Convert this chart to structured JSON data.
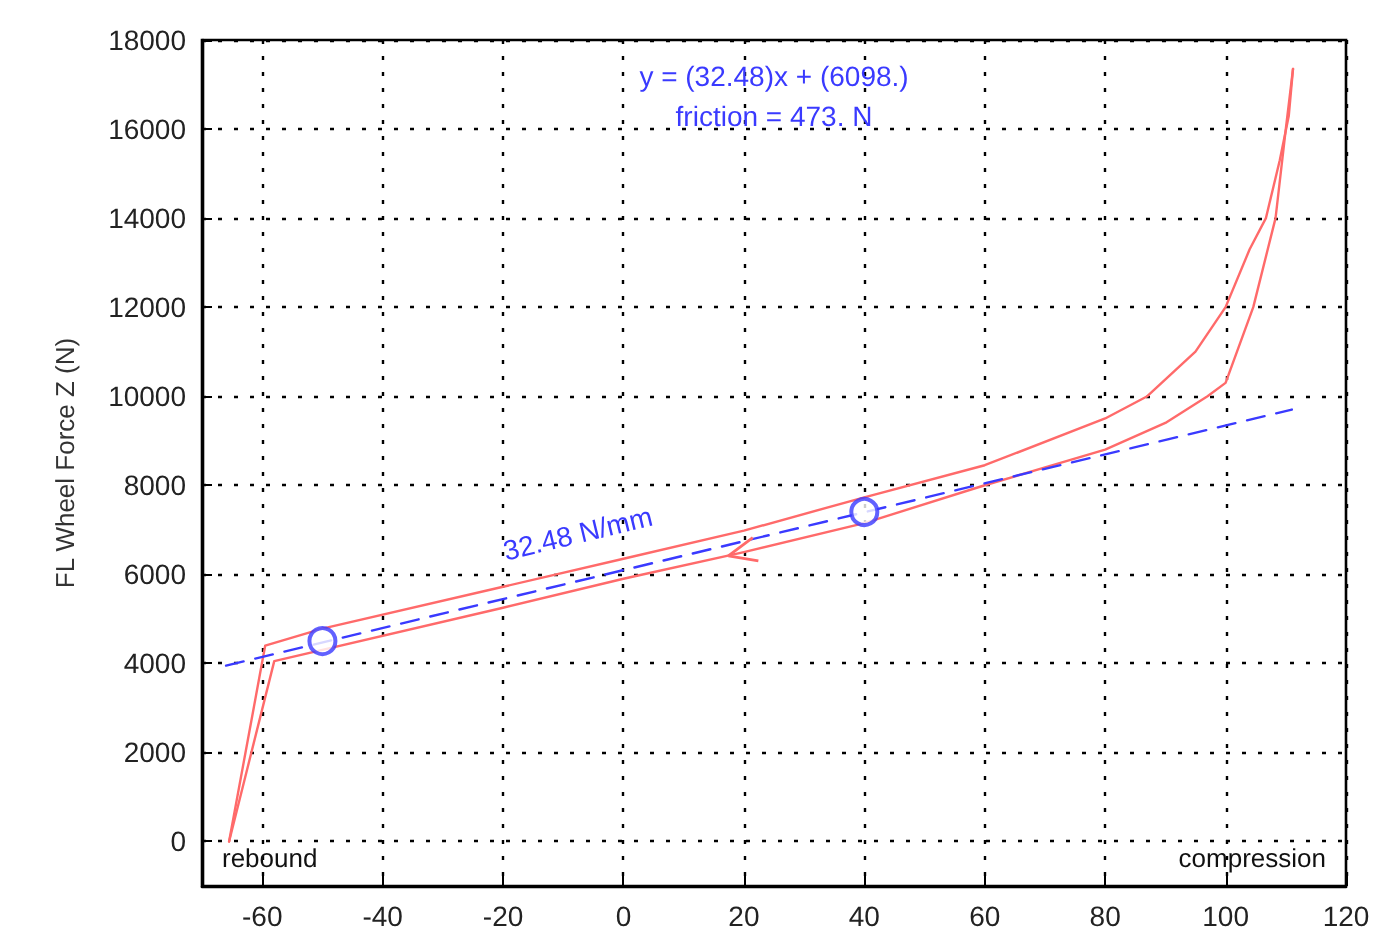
{
  "chart_data": {
    "type": "line",
    "ylabel": "FL Wheel Force Z (N)",
    "xlim": [
      -70,
      120
    ],
    "xticks": [
      -60,
      -40,
      -20,
      0,
      20,
      40,
      60,
      80,
      100,
      120
    ],
    "ylim": [
      -1000,
      18000
    ],
    "yticks": [
      0,
      2000,
      4000,
      6000,
      8000,
      10000,
      12000,
      14000,
      16000,
      18000
    ],
    "grid": true,
    "legend": false,
    "series": [
      {
        "color": "#ff6a6a",
        "marker": "none",
        "line_style": "solid",
        "x": [
          -65.5,
          -59.5,
          -50,
          -20,
          0,
          20,
          40,
          60,
          80,
          87,
          95,
          100,
          104,
          106.7,
          109,
          110.5,
          111.2
        ],
        "values": [
          0,
          4400,
          4780,
          5720,
          6350,
          6980,
          7730,
          8450,
          9500,
          10000,
          11000,
          12000,
          13300,
          14000,
          15300,
          16300,
          17350
        ]
      },
      {
        "color": "#ff6a6a",
        "marker": "none",
        "line_style": "solid",
        "x": [
          -65.5,
          -58,
          -20,
          0,
          20,
          40,
          60,
          80,
          90,
          97,
          100,
          104.6,
          108.3,
          110,
          111.2
        ],
        "values": [
          0,
          4050,
          5250,
          5900,
          6500,
          7150,
          8000,
          8800,
          9400,
          10000,
          10300,
          12000,
          14000,
          16000,
          17350
        ]
      },
      {
        "color": "#3a3aff",
        "marker": "none",
        "line_style": "dashed",
        "x": [
          -66,
          111
        ],
        "values": [
          3950,
          9700
        ]
      },
      {
        "type": "scatter",
        "color": "#3a3aff",
        "marker": "circle",
        "x": [
          -50,
          40
        ],
        "values": [
          4500,
          7400
        ]
      }
    ],
    "annotations": [
      "y = (32.48)x + (6098.)",
      "friction = 473. N",
      "rebound",
      "compression",
      "32.48 N/mm"
    ]
  }
}
